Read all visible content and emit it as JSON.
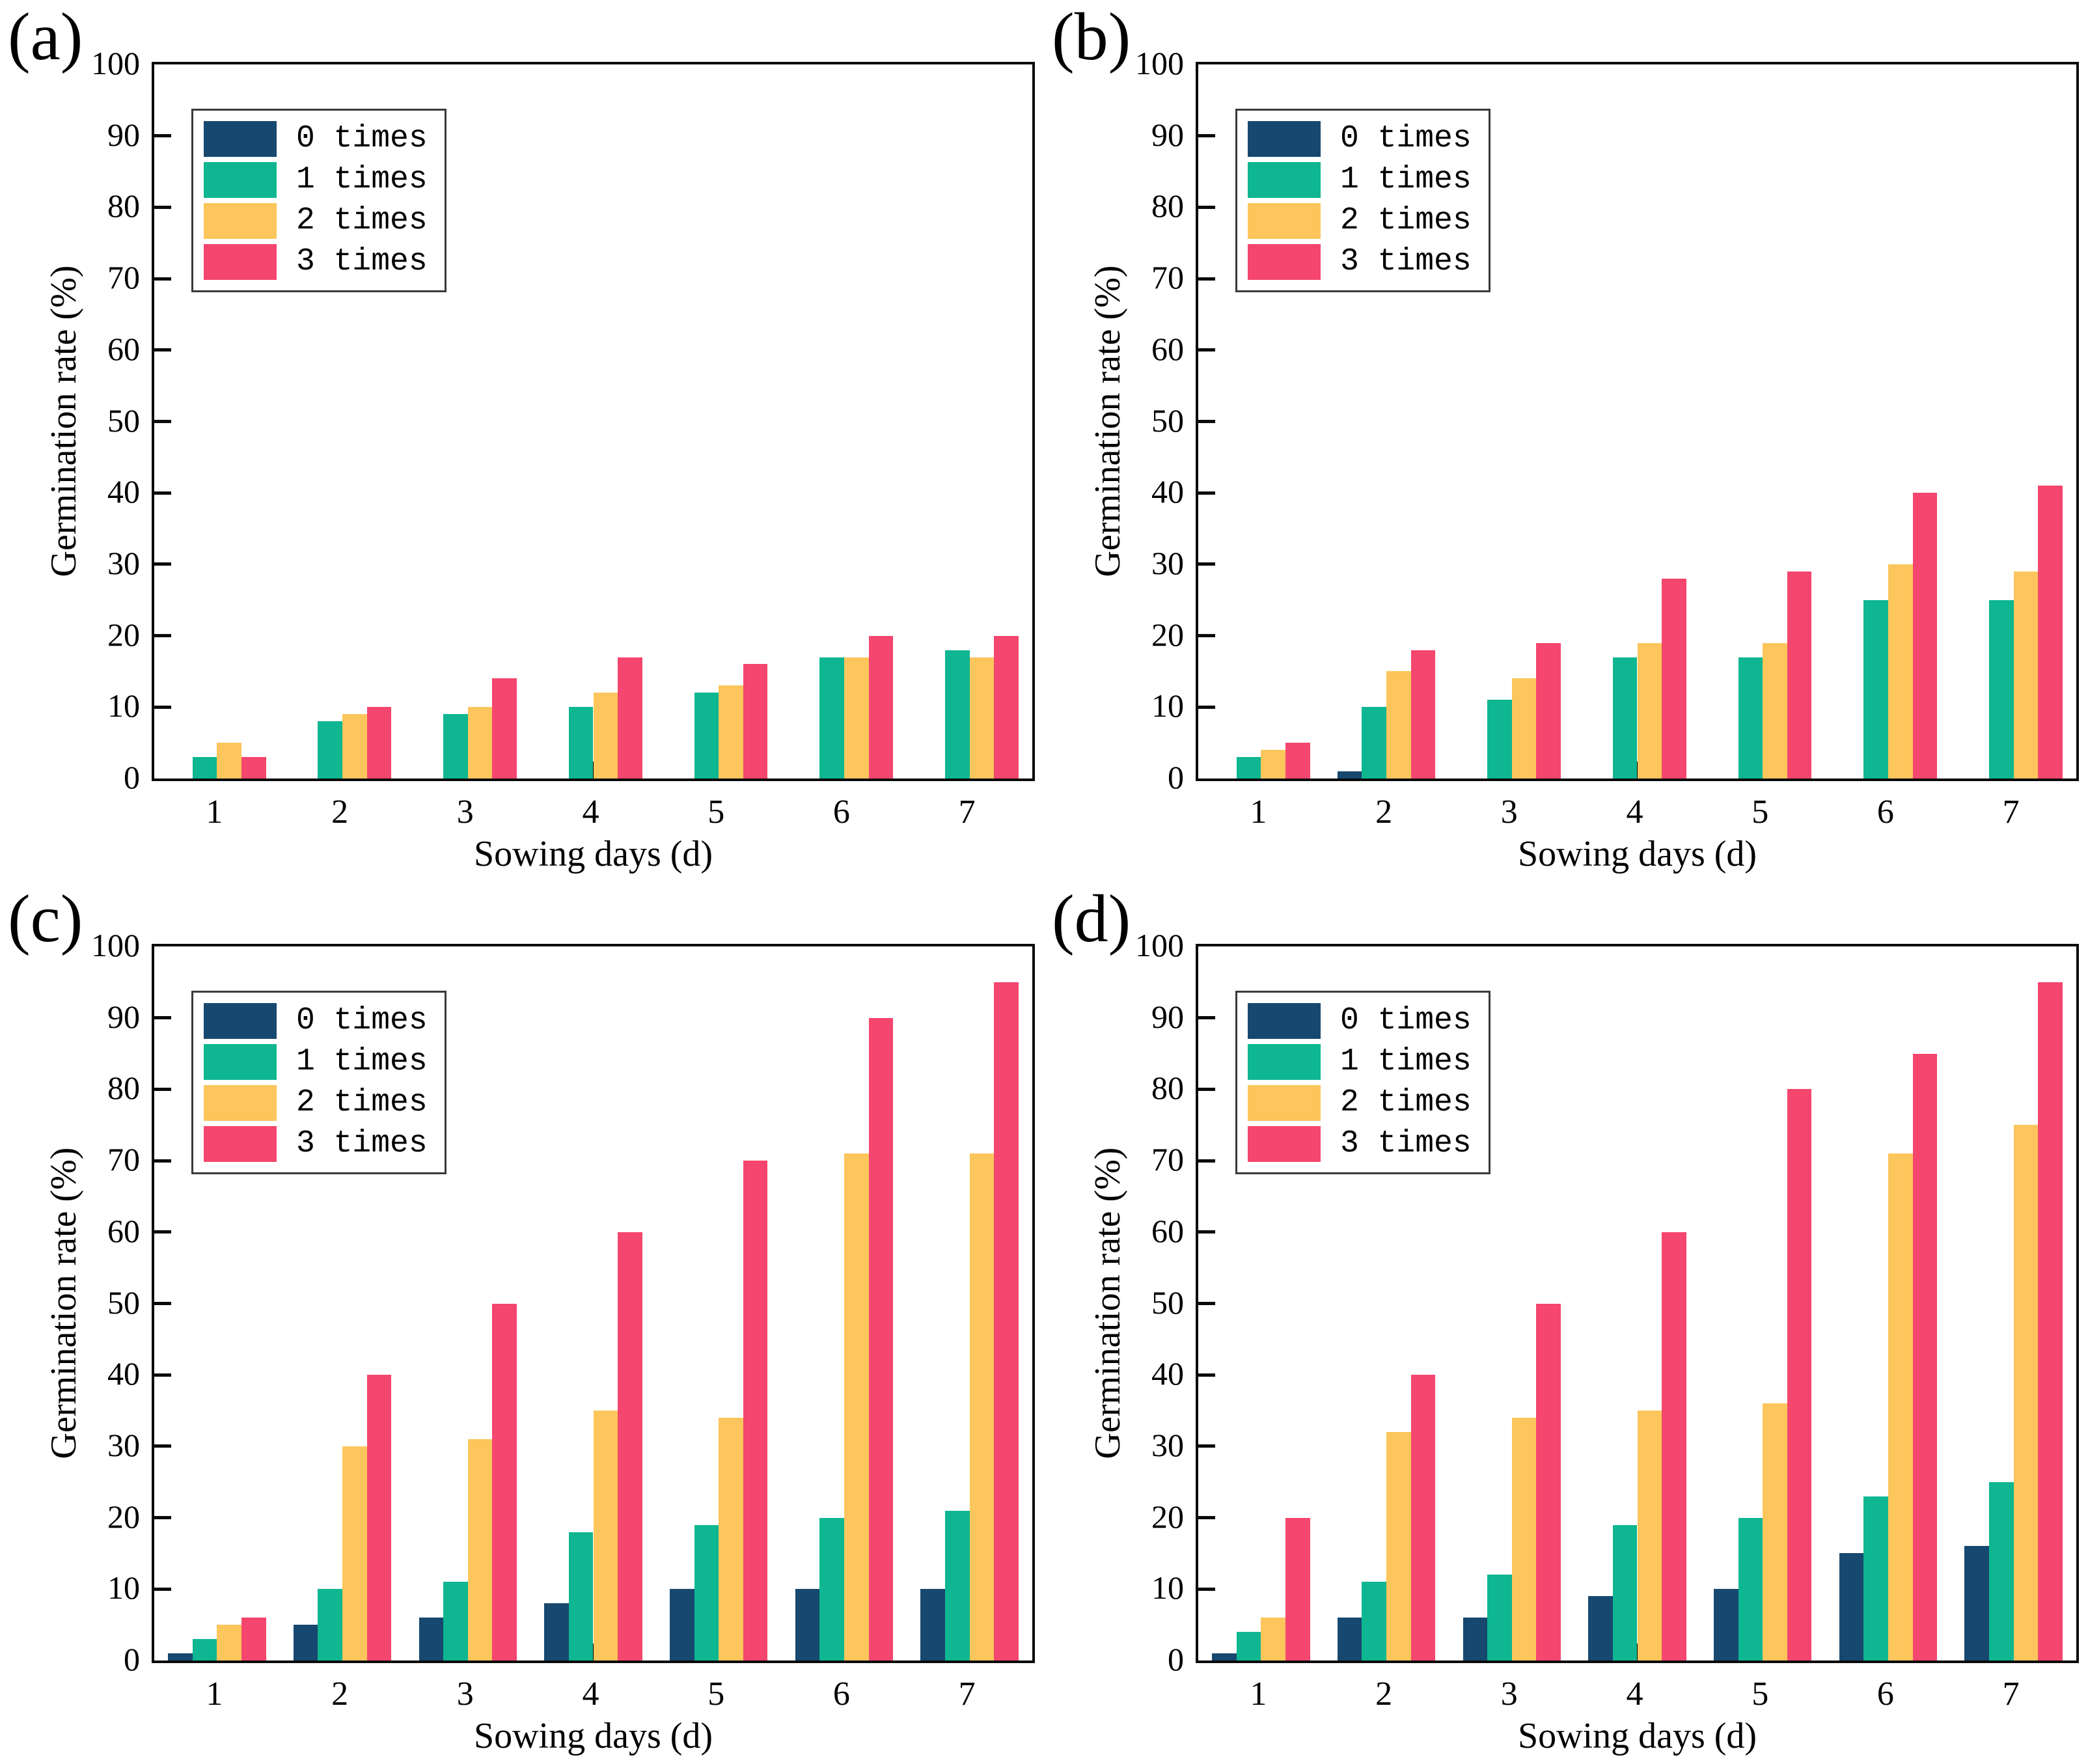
{
  "figure": {
    "background": "#ffffff",
    "axis_color": "#0a0a0a",
    "panel_labels": [
      "(a)",
      "(b)",
      "(c)",
      "(d)"
    ]
  },
  "chart_data": [
    {
      "type": "bar",
      "panel_label": "(a)",
      "xlabel": "Sowing days (d)",
      "ylabel": "Germination rate (%)",
      "categories": [
        "1",
        "2",
        "3",
        "4",
        "5",
        "6",
        "7"
      ],
      "ylim": [
        0,
        100
      ],
      "ytick_step": 10,
      "grid": false,
      "legend_position": "upper-left",
      "series": [
        {
          "name": "0 times",
          "color": "#17486f",
          "values": [
            0,
            0,
            0,
            0,
            0,
            0,
            0
          ]
        },
        {
          "name": "1 times",
          "color": "#0eb691",
          "values": [
            3,
            8,
            9,
            10,
            12,
            17,
            18
          ]
        },
        {
          "name": "2 times",
          "color": "#fcc65c",
          "values": [
            5,
            9,
            10,
            12,
            13,
            17,
            17
          ]
        },
        {
          "name": "3 times",
          "color": "#f4466e",
          "values": [
            3,
            10,
            14,
            17,
            16,
            20,
            20
          ]
        }
      ]
    },
    {
      "type": "bar",
      "panel_label": "(b)",
      "xlabel": "Sowing days (d)",
      "ylabel": "Germination rate (%)",
      "categories": [
        "1",
        "2",
        "3",
        "4",
        "5",
        "6",
        "7"
      ],
      "ylim": [
        0,
        100
      ],
      "ytick_step": 10,
      "grid": false,
      "legend_position": "upper-left",
      "series": [
        {
          "name": "0 times",
          "color": "#17486f",
          "values": [
            0,
            1,
            0,
            0,
            0,
            0,
            0
          ]
        },
        {
          "name": "1 times",
          "color": "#0eb691",
          "values": [
            3,
            10,
            11,
            17,
            17,
            25,
            25
          ]
        },
        {
          "name": "2 times",
          "color": "#fcc65c",
          "values": [
            4,
            15,
            14,
            19,
            19,
            30,
            29
          ]
        },
        {
          "name": "3 times",
          "color": "#f4466e",
          "values": [
            5,
            18,
            19,
            28,
            29,
            40,
            41
          ]
        }
      ]
    },
    {
      "type": "bar",
      "panel_label": "(c)",
      "xlabel": "Sowing days (d)",
      "ylabel": "Germination rate (%)",
      "categories": [
        "1",
        "2",
        "3",
        "4",
        "5",
        "6",
        "7"
      ],
      "ylim": [
        0,
        100
      ],
      "ytick_step": 10,
      "grid": false,
      "legend_position": "upper-left",
      "series": [
        {
          "name": "0 times",
          "color": "#17486f",
          "values": [
            1,
            5,
            6,
            8,
            10,
            10,
            10
          ]
        },
        {
          "name": "1 times",
          "color": "#0eb691",
          "values": [
            3,
            10,
            11,
            18,
            19,
            20,
            21
          ]
        },
        {
          "name": "2 times",
          "color": "#fcc65c",
          "values": [
            5,
            30,
            31,
            35,
            34,
            71,
            71
          ]
        },
        {
          "name": "3 times",
          "color": "#f4466e",
          "values": [
            6,
            40,
            50,
            60,
            70,
            90,
            95
          ]
        }
      ]
    },
    {
      "type": "bar",
      "panel_label": "(d)",
      "xlabel": "Sowing days (d)",
      "ylabel": "Germination rate (%)",
      "categories": [
        "1",
        "2",
        "3",
        "4",
        "5",
        "6",
        "7"
      ],
      "ylim": [
        0,
        100
      ],
      "ytick_step": 10,
      "grid": false,
      "legend_position": "upper-left",
      "series": [
        {
          "name": "0 times",
          "color": "#17486f",
          "values": [
            1,
            6,
            6,
            9,
            10,
            15,
            16
          ]
        },
        {
          "name": "1 times",
          "color": "#0eb691",
          "values": [
            4,
            11,
            12,
            19,
            20,
            23,
            25
          ]
        },
        {
          "name": "2 times",
          "color": "#fcc65c",
          "values": [
            6,
            32,
            34,
            35,
            36,
            71,
            75
          ]
        },
        {
          "name": "3 times",
          "color": "#f4466e",
          "values": [
            20,
            40,
            50,
            60,
            80,
            85,
            95
          ]
        }
      ]
    }
  ]
}
